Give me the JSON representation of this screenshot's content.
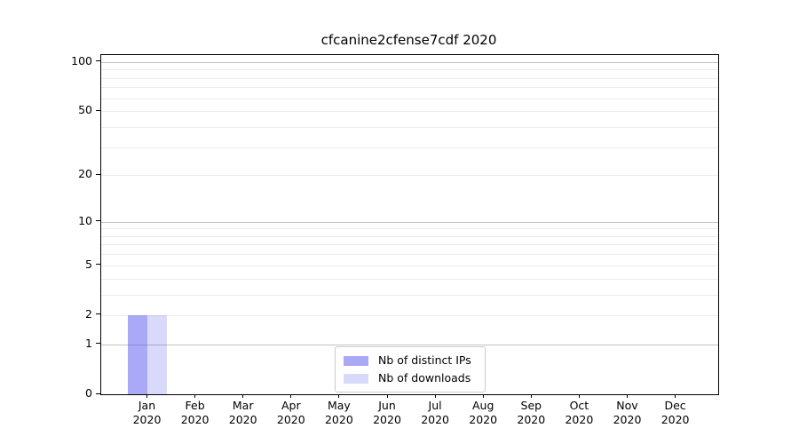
{
  "chart_data": {
    "type": "bar",
    "title": "cfcanine2cfense7cdf 2020",
    "categories": [
      "Jan",
      "Feb",
      "Mar",
      "Apr",
      "May",
      "Jun",
      "Jul",
      "Aug",
      "Sep",
      "Oct",
      "Nov",
      "Dec"
    ],
    "x_tick_year": "2020",
    "series": [
      {
        "name": "Nb of distinct IPs",
        "color": "rgba(80,80,238,0.49)",
        "swatch_hex": "#a9a9f5",
        "values": [
          2,
          0,
          0,
          0,
          0,
          0,
          0,
          0,
          0,
          0,
          0,
          0
        ]
      },
      {
        "name": "Nb of downloads",
        "color": "rgba(80,80,238,0.22)",
        "swatch_hex": "#d9d9f8",
        "values": [
          2,
          0,
          0,
          0,
          0,
          0,
          0,
          0,
          0,
          0,
          0,
          0
        ]
      }
    ],
    "yscale": "log1p",
    "ylim": [
      0,
      110
    ],
    "yticks": [
      0,
      1,
      2,
      5,
      10,
      20,
      50,
      100
    ],
    "gridlines_major": [
      1,
      10,
      100
    ],
    "gridlines_minor": [
      2,
      3,
      4,
      5,
      6,
      7,
      8,
      9,
      20,
      30,
      40,
      50,
      60,
      70,
      80,
      90
    ],
    "grid": "horizontal",
    "legend_position": "inside-bottom-center"
  }
}
